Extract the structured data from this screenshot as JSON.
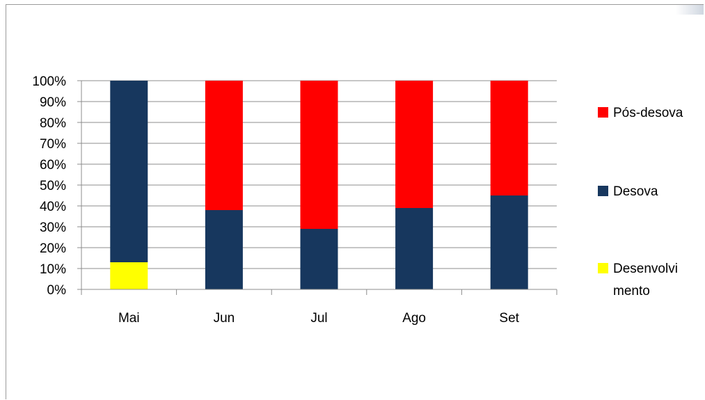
{
  "chart_data": {
    "type": "bar",
    "stacked": true,
    "percent": true,
    "categories": [
      "Mai",
      "Jun",
      "Jul",
      "Ago",
      "Set"
    ],
    "series": [
      {
        "name": "Desenvolvimento",
        "legend_lines": [
          "Desenvolvi",
          "mento"
        ],
        "color": "#ffff00",
        "values": [
          13,
          0,
          0,
          0,
          0
        ]
      },
      {
        "name": "Desova",
        "legend_lines": [
          "Desova"
        ],
        "color": "#17375e",
        "values": [
          87,
          38,
          29,
          39,
          45
        ]
      },
      {
        "name": "Pós-desova",
        "legend_lines": [
          "Pós-desova"
        ],
        "color": "#ff0000",
        "values": [
          0,
          62,
          71,
          61,
          55
        ]
      }
    ],
    "y_ticks": [
      "0%",
      "10%",
      "20%",
      "30%",
      "40%",
      "50%",
      "60%",
      "70%",
      "80%",
      "90%",
      "100%"
    ],
    "ylim": [
      0,
      100
    ],
    "grid": true,
    "legend_position": "right"
  }
}
